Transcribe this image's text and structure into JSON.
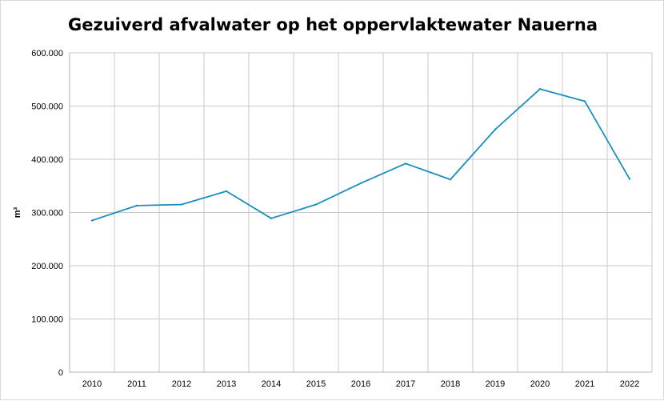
{
  "chart_data": {
    "type": "line",
    "title": "Gezuiverd afvalwater op het oppervlaktewater Nauerna",
    "xlabel": "",
    "ylabel": "m³",
    "x": [
      "2010",
      "2011",
      "2012",
      "2013",
      "2014",
      "2015",
      "2016",
      "2017",
      "2018",
      "2019",
      "2020",
      "2021",
      "2022"
    ],
    "series": [
      {
        "values": [
          285000,
          313000,
          315000,
          340000,
          289000,
          315000,
          355000,
          392000,
          362000,
          456000,
          532000,
          509000,
          363000
        ]
      }
    ],
    "ylim": [
      0,
      600000
    ],
    "yticks": [
      0,
      100000,
      200000,
      300000,
      400000,
      500000,
      600000
    ],
    "ytick_labels": [
      "0",
      "100.000",
      "200.000",
      "300.000",
      "400.000",
      "500.000",
      "600.000"
    ],
    "grid": true,
    "legend": "none",
    "colors": {
      "line": "#1a8fbf",
      "grid": "#c8c8c8",
      "axis": "#b0b0b0"
    }
  }
}
